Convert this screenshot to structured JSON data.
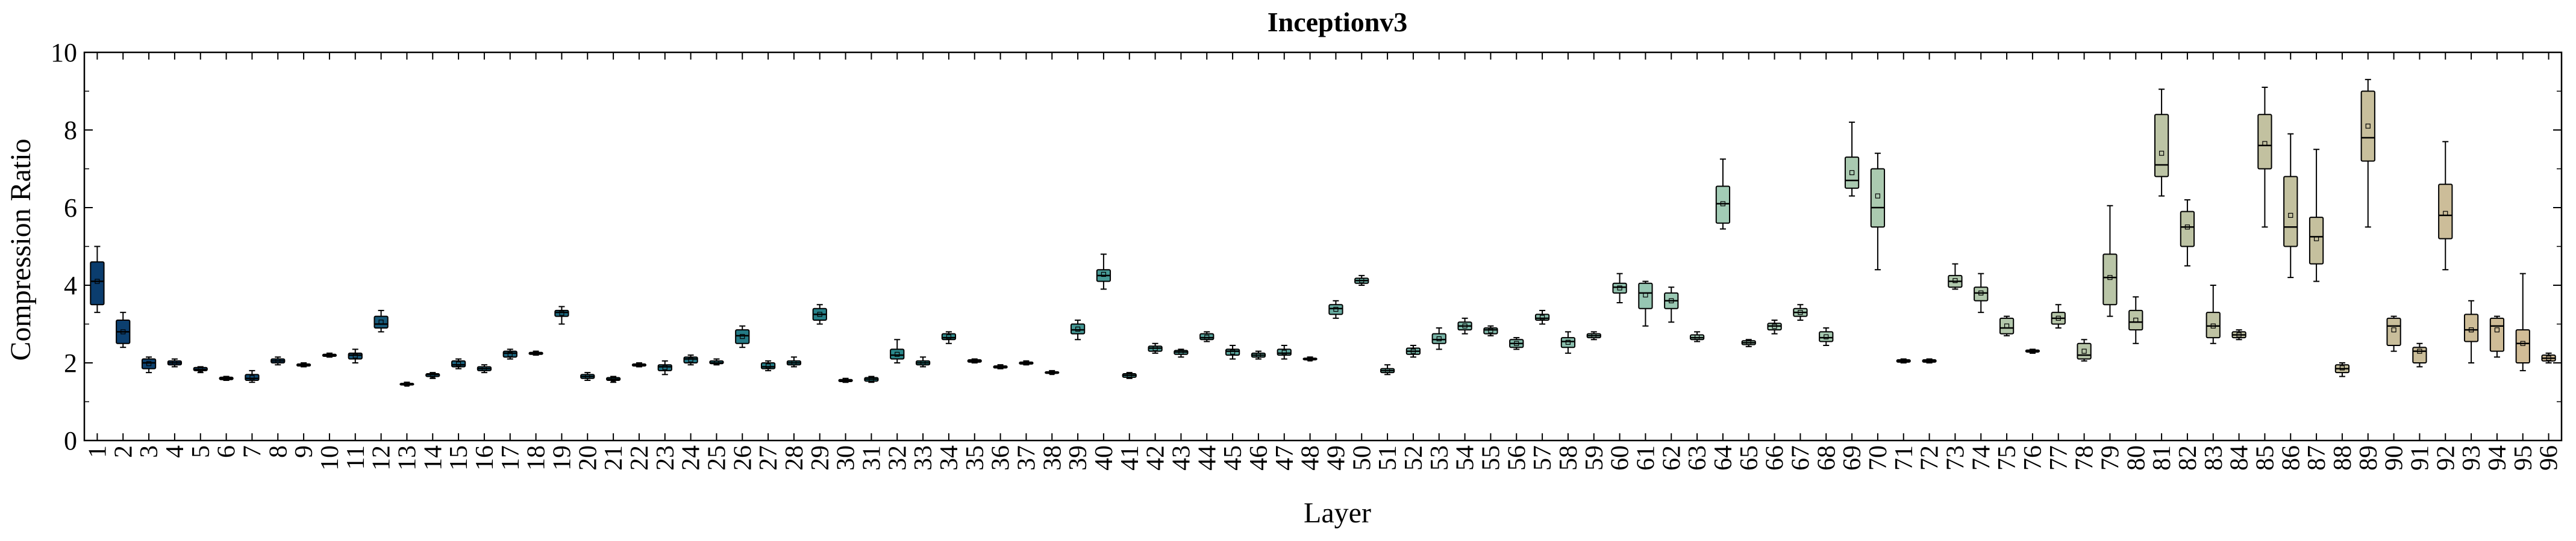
{
  "chart_data": {
    "type": "box",
    "title": "Inceptionv3",
    "xlabel": "Layer",
    "ylabel": "Compression Ratio",
    "ylim": [
      0,
      10
    ],
    "yticks": [
      0,
      2,
      4,
      6,
      8,
      10
    ],
    "grid": false,
    "legend": "none",
    "box_fields": [
      "whisker_low",
      "q1",
      "median",
      "q3",
      "whisker_high",
      "mean"
    ],
    "categories": [
      "1",
      "2",
      "3",
      "4",
      "5",
      "6",
      "7",
      "8",
      "9",
      "10",
      "11",
      "12",
      "13",
      "14",
      "15",
      "16",
      "17",
      "18",
      "19",
      "20",
      "21",
      "22",
      "23",
      "24",
      "25",
      "26",
      "27",
      "28",
      "29",
      "30",
      "31",
      "32",
      "33",
      "34",
      "35",
      "36",
      "37",
      "38",
      "39",
      "40",
      "41",
      "42",
      "43",
      "44",
      "45",
      "46",
      "47",
      "48",
      "49",
      "50",
      "51",
      "52",
      "53",
      "54",
      "55",
      "56",
      "57",
      "58",
      "59",
      "60",
      "61",
      "62",
      "63",
      "64",
      "65",
      "66",
      "67",
      "68",
      "69",
      "70",
      "71",
      "72",
      "73",
      "74",
      "75",
      "76",
      "77",
      "78",
      "79",
      "80",
      "81",
      "82",
      "83",
      "84",
      "85",
      "86",
      "87",
      "88",
      "89",
      "90",
      "91",
      "92",
      "93",
      "94",
      "95",
      "96"
    ],
    "boxes": [
      [
        3.3,
        3.5,
        4.1,
        4.6,
        5.0,
        4.1
      ],
      [
        2.4,
        2.5,
        2.8,
        3.1,
        3.3,
        2.8
      ],
      [
        1.75,
        1.85,
        2.0,
        2.1,
        2.15,
        1.98
      ],
      [
        1.9,
        1.95,
        2.0,
        2.05,
        2.1,
        2.0
      ],
      [
        1.75,
        1.8,
        1.83,
        1.88,
        1.9,
        1.83
      ],
      [
        1.55,
        1.57,
        1.6,
        1.63,
        1.65,
        1.6
      ],
      [
        1.5,
        1.55,
        1.6,
        1.7,
        1.8,
        1.62
      ],
      [
        1.95,
        2.0,
        2.05,
        2.1,
        2.15,
        2.05
      ],
      [
        1.9,
        1.92,
        1.95,
        1.97,
        2.0,
        1.95
      ],
      [
        2.15,
        2.17,
        2.2,
        2.22,
        2.25,
        2.2
      ],
      [
        2.0,
        2.1,
        2.2,
        2.25,
        2.35,
        2.18
      ],
      [
        2.8,
        2.9,
        3.0,
        3.2,
        3.35,
        3.05
      ],
      [
        1.42,
        1.44,
        1.45,
        1.47,
        1.5,
        1.45
      ],
      [
        1.6,
        1.65,
        1.7,
        1.72,
        1.75,
        1.68
      ],
      [
        1.85,
        1.9,
        1.95,
        2.05,
        2.1,
        1.97
      ],
      [
        1.75,
        1.8,
        1.85,
        1.9,
        1.95,
        1.85
      ],
      [
        2.1,
        2.15,
        2.25,
        2.3,
        2.35,
        2.22
      ],
      [
        2.2,
        2.22,
        2.25,
        2.27,
        2.3,
        2.25
      ],
      [
        3.0,
        3.2,
        3.3,
        3.35,
        3.45,
        3.28
      ],
      [
        1.55,
        1.6,
        1.65,
        1.7,
        1.75,
        1.65
      ],
      [
        1.5,
        1.55,
        1.58,
        1.62,
        1.65,
        1.58
      ],
      [
        1.9,
        1.92,
        1.95,
        1.97,
        2.0,
        1.95
      ],
      [
        1.7,
        1.8,
        1.9,
        1.95,
        2.05,
        1.88
      ],
      [
        1.95,
        2.0,
        2.1,
        2.15,
        2.2,
        2.08
      ],
      [
        1.95,
        1.98,
        2.0,
        2.05,
        2.1,
        2.0
      ],
      [
        2.4,
        2.5,
        2.7,
        2.85,
        2.95,
        2.68
      ],
      [
        1.8,
        1.85,
        1.9,
        2.0,
        2.05,
        1.92
      ],
      [
        1.9,
        1.95,
        2.0,
        2.05,
        2.15,
        2.0
      ],
      [
        3.0,
        3.1,
        3.25,
        3.4,
        3.5,
        3.25
      ],
      [
        1.5,
        1.52,
        1.55,
        1.57,
        1.6,
        1.55
      ],
      [
        1.5,
        1.53,
        1.58,
        1.62,
        1.65,
        1.58
      ],
      [
        2.0,
        2.1,
        2.2,
        2.35,
        2.6,
        2.22
      ],
      [
        1.9,
        1.95,
        2.0,
        2.05,
        2.15,
        2.0
      ],
      [
        2.5,
        2.6,
        2.65,
        2.75,
        2.8,
        2.67
      ],
      [
        2.0,
        2.02,
        2.05,
        2.08,
        2.1,
        2.05
      ],
      [
        1.85,
        1.87,
        1.9,
        1.92,
        1.95,
        1.9
      ],
      [
        1.95,
        1.97,
        2.0,
        2.02,
        2.05,
        2.0
      ],
      [
        1.72,
        1.74,
        1.75,
        1.77,
        1.8,
        1.75
      ],
      [
        2.6,
        2.75,
        2.85,
        3.0,
        3.1,
        2.87
      ],
      [
        3.9,
        4.1,
        4.25,
        4.4,
        4.8,
        4.28
      ],
      [
        1.6,
        1.63,
        1.68,
        1.72,
        1.75,
        1.68
      ],
      [
        2.25,
        2.3,
        2.38,
        2.43,
        2.5,
        2.37
      ],
      [
        2.15,
        2.22,
        2.28,
        2.32,
        2.35,
        2.27
      ],
      [
        2.55,
        2.6,
        2.65,
        2.75,
        2.8,
        2.66
      ],
      [
        2.1,
        2.2,
        2.3,
        2.35,
        2.45,
        2.28
      ],
      [
        2.1,
        2.15,
        2.2,
        2.25,
        2.3,
        2.2
      ],
      [
        2.1,
        2.2,
        2.25,
        2.35,
        2.45,
        2.27
      ],
      [
        2.07,
        2.08,
        2.1,
        2.12,
        2.15,
        2.1
      ],
      [
        3.15,
        3.25,
        3.4,
        3.5,
        3.6,
        3.38
      ],
      [
        4.0,
        4.05,
        4.12,
        4.18,
        4.25,
        4.12
      ],
      [
        1.7,
        1.75,
        1.8,
        1.85,
        1.95,
        1.8
      ],
      [
        2.15,
        2.22,
        2.3,
        2.38,
        2.45,
        2.3
      ],
      [
        2.35,
        2.5,
        2.6,
        2.75,
        2.9,
        2.62
      ],
      [
        2.75,
        2.85,
        2.95,
        3.05,
        3.15,
        2.95
      ],
      [
        2.7,
        2.75,
        2.85,
        2.9,
        2.95,
        2.83
      ],
      [
        2.35,
        2.4,
        2.5,
        2.6,
        2.65,
        2.5
      ],
      [
        3.0,
        3.1,
        3.15,
        3.25,
        3.35,
        3.17
      ],
      [
        2.25,
        2.4,
        2.55,
        2.65,
        2.8,
        2.53
      ],
      [
        2.6,
        2.65,
        2.7,
        2.75,
        2.8,
        2.7
      ],
      [
        3.55,
        3.8,
        3.95,
        4.05,
        4.3,
        3.93
      ],
      [
        2.95,
        3.4,
        3.8,
        4.05,
        4.1,
        3.75
      ],
      [
        3.05,
        3.4,
        3.6,
        3.8,
        3.95,
        3.6
      ],
      [
        2.55,
        2.6,
        2.65,
        2.72,
        2.8,
        2.66
      ],
      [
        5.45,
        5.6,
        6.1,
        6.55,
        7.25,
        6.1
      ],
      [
        2.42,
        2.47,
        2.52,
        2.57,
        2.6,
        2.52
      ],
      [
        2.75,
        2.85,
        2.95,
        3.02,
        3.1,
        2.94
      ],
      [
        3.1,
        3.2,
        3.3,
        3.4,
        3.5,
        3.3
      ],
      [
        2.45,
        2.55,
        2.65,
        2.8,
        2.9,
        2.67
      ],
      [
        6.3,
        6.5,
        6.7,
        7.3,
        8.2,
        6.9
      ],
      [
        4.4,
        5.5,
        6.0,
        7.0,
        7.4,
        6.3
      ],
      [
        2.0,
        2.02,
        2.05,
        2.08,
        2.1,
        2.05
      ],
      [
        2.0,
        2.02,
        2.05,
        2.08,
        2.1,
        2.05
      ],
      [
        3.9,
        3.95,
        4.1,
        4.25,
        4.55,
        4.12
      ],
      [
        3.3,
        3.6,
        3.8,
        3.95,
        4.3,
        3.8
      ],
      [
        2.7,
        2.75,
        2.9,
        3.15,
        3.2,
        2.95
      ],
      [
        2.25,
        2.28,
        2.3,
        2.33,
        2.35,
        2.3
      ],
      [
        2.9,
        3.0,
        3.15,
        3.3,
        3.5,
        3.15
      ],
      [
        2.05,
        2.1,
        2.2,
        2.5,
        2.6,
        2.3
      ],
      [
        3.2,
        3.5,
        4.2,
        4.8,
        6.05,
        4.2
      ],
      [
        2.5,
        2.85,
        3.05,
        3.35,
        3.7,
        3.1
      ],
      [
        6.3,
        6.8,
        7.1,
        8.4,
        9.05,
        7.4
      ],
      [
        4.5,
        5.0,
        5.5,
        5.9,
        6.2,
        5.5
      ],
      [
        2.5,
        2.65,
        2.95,
        3.3,
        4.0,
        2.95
      ],
      [
        2.6,
        2.65,
        2.72,
        2.8,
        2.85,
        2.72
      ],
      [
        5.5,
        7.0,
        7.6,
        8.4,
        9.1,
        7.65
      ],
      [
        4.2,
        5.0,
        5.5,
        6.8,
        7.9,
        5.8
      ],
      [
        4.1,
        4.55,
        5.25,
        5.75,
        7.5,
        5.2
      ],
      [
        1.65,
        1.75,
        1.85,
        1.95,
        2.0,
        1.87
      ],
      [
        5.5,
        7.2,
        7.8,
        9.0,
        9.3,
        8.1
      ],
      [
        2.3,
        2.45,
        2.95,
        3.15,
        3.2,
        2.85
      ],
      [
        1.9,
        2.0,
        2.3,
        2.4,
        2.5,
        2.3
      ],
      [
        4.4,
        5.2,
        5.8,
        6.6,
        7.7,
        5.85
      ],
      [
        2.0,
        2.55,
        2.85,
        3.25,
        3.6,
        2.85
      ],
      [
        2.15,
        2.3,
        2.95,
        3.15,
        3.2,
        2.85
      ],
      [
        1.8,
        2.0,
        2.5,
        2.85,
        4.3,
        2.5
      ],
      [
        2.0,
        2.05,
        2.12,
        2.2,
        2.25,
        2.12
      ]
    ],
    "colors": {
      "start": "#0b3d6e",
      "mid": "#2b8a8c",
      "green": "#a3cdb6",
      "end": "#d2bb95",
      "stroke": "#000000",
      "text": "#000000"
    }
  }
}
